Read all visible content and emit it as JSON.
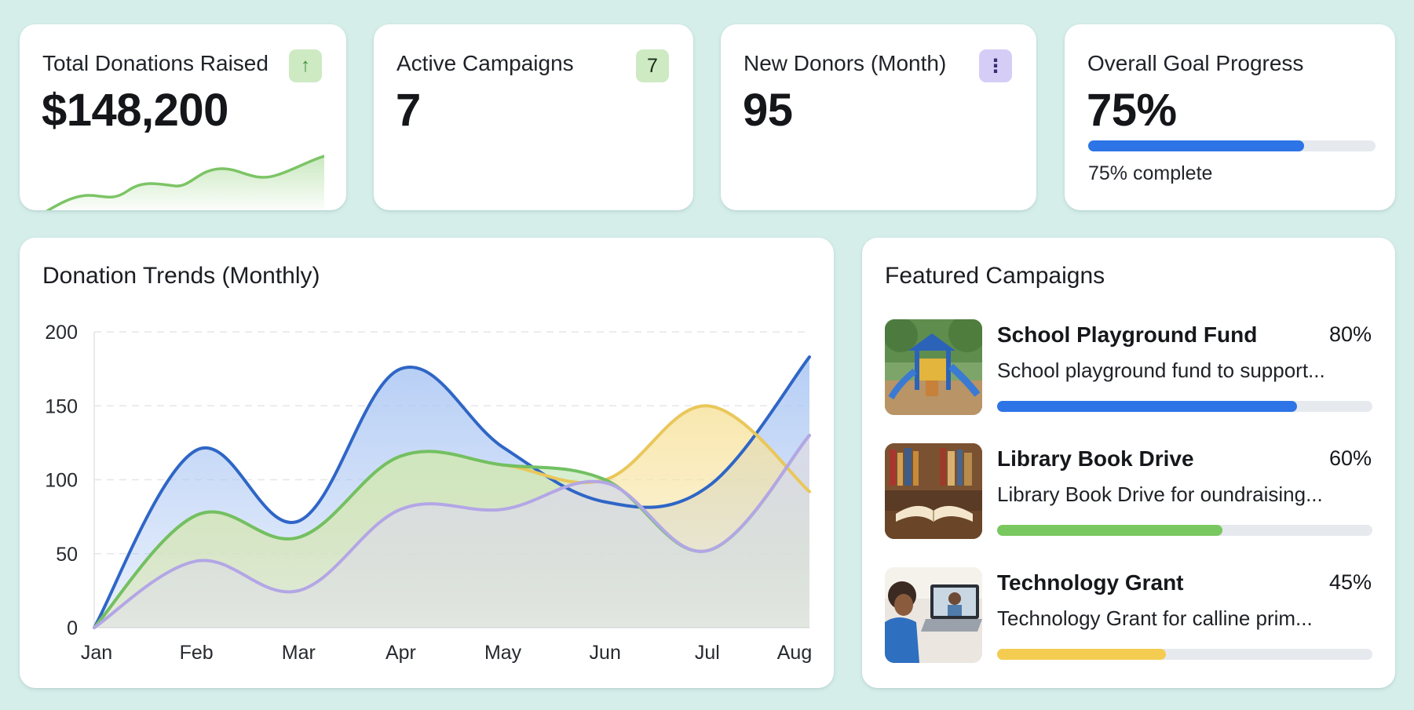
{
  "kpis": {
    "donations": {
      "title": "Total Donations Raised",
      "value": "$148,200",
      "badge_icon": "arrow-up-icon",
      "badge_glyph": "↑"
    },
    "campaigns": {
      "title": "Active Campaigns",
      "value": "7",
      "badge": "7"
    },
    "donors": {
      "title": "New Donors (Month)",
      "value": "95",
      "badge_icon": "more-vertical-icon",
      "badge_glyph": "⋮"
    },
    "goal": {
      "title": "Overall Goal Progress",
      "value": "75%",
      "progress": 0.75,
      "caption": "75% complete"
    }
  },
  "trend": {
    "title": "Donation Trends (Monthly)"
  },
  "chart_data": {
    "type": "area",
    "categories": [
      "Jan",
      "Feb",
      "Mar",
      "Apr",
      "May",
      "Jun",
      "Jul",
      "Aug"
    ],
    "ylim": [
      0,
      200
    ],
    "yticks": [
      0,
      50,
      100,
      150,
      200
    ],
    "grid": true,
    "legend": "none",
    "series": [
      {
        "values": [
          0,
          120,
          72,
          175,
          122,
          85,
          95,
          183
        ],
        "color": "#2f66c6",
        "fill": "#a9c5f3"
      },
      {
        "values": [
          0,
          76,
          61,
          116,
          110,
          100,
          150,
          92
        ],
        "color": "#e9c75a",
        "fill": "#f7e3a0"
      },
      {
        "values": [
          0,
          76,
          61,
          116,
          110,
          100,
          52,
          130
        ],
        "color": "#72c062",
        "fill": "#c8e8bf"
      },
      {
        "values": [
          0,
          45,
          25,
          80,
          80,
          98,
          52,
          130
        ],
        "color": "#b3a6e6",
        "fill": "#ddd8f0"
      }
    ]
  },
  "featured": {
    "title": "Featured Campaigns",
    "items": [
      {
        "name": "School Playground Fund",
        "percent": "80%",
        "progress": 0.8,
        "description": "School playground fund to support...",
        "color": "#2d74e6"
      },
      {
        "name": "Library Book Drive",
        "percent": "60%",
        "progress": 0.6,
        "description": "Library Book Drive for oundraising...",
        "color": "#79c85f"
      },
      {
        "name": "Technology Grant",
        "percent": "45%",
        "progress": 0.45,
        "description": "Technology Grant for calline prim...",
        "color": "#f4cc52"
      }
    ]
  }
}
